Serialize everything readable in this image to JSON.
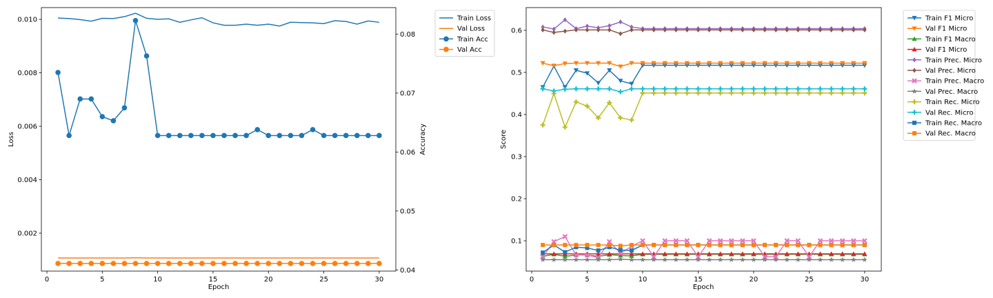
{
  "chart_data": [
    {
      "type": "line",
      "xlabel": "Epoch",
      "ylabel": "Loss",
      "y2label": "Accuracy",
      "xlim": [
        -0.5,
        31.5
      ],
      "ylim": [
        0.00058,
        0.01044
      ],
      "y2lim": [
        0.0398,
        0.0845
      ],
      "xticks": [
        0,
        5,
        10,
        15,
        20,
        25,
        30
      ],
      "yticks": [
        0.002,
        0.004,
        0.006,
        0.008,
        0.01
      ],
      "yticklabels": [
        "0.002",
        "0.004",
        "0.006",
        "0.008",
        "0.010"
      ],
      "y2ticks": [
        0.04,
        0.05,
        0.06,
        0.07,
        0.08
      ],
      "y2ticklabels": [
        "0.04",
        "0.05",
        "0.06",
        "0.07",
        "0.08"
      ],
      "x": [
        1,
        2,
        3,
        4,
        5,
        6,
        7,
        8,
        9,
        10,
        11,
        12,
        13,
        14,
        15,
        16,
        17,
        18,
        19,
        20,
        21,
        22,
        23,
        24,
        25,
        26,
        27,
        28,
        29,
        30
      ],
      "legend_position": "outside-right-top",
      "series": [
        {
          "name": "Train Loss",
          "axis": "left",
          "color": "#1f77b4",
          "marker": "none",
          "values": [
            0.01005,
            0.01003,
            0.00999,
            0.00993,
            0.01004,
            0.01003,
            0.0101,
            0.01023,
            0.01004,
            0.01,
            0.01002,
            0.00989,
            0.00998,
            0.01006,
            0.00987,
            0.00978,
            0.00978,
            0.00982,
            0.00978,
            0.00982,
            0.00975,
            0.00989,
            0.00988,
            0.00987,
            0.00984,
            0.00995,
            0.00992,
            0.00982,
            0.00994,
            0.00989
          ]
        },
        {
          "name": "Val Loss",
          "axis": "left",
          "color": "#ff7f0e",
          "marker": "none",
          "values": [
            0.00107,
            0.00107,
            0.00107,
            0.00107,
            0.00107,
            0.00107,
            0.00107,
            0.00108,
            0.00107,
            0.00107,
            0.00107,
            0.00107,
            0.00107,
            0.00107,
            0.00107,
            0.00107,
            0.00107,
            0.00107,
            0.00107,
            0.00107,
            0.00107,
            0.00107,
            0.00107,
            0.00107,
            0.00107,
            0.00107,
            0.00107,
            0.00107,
            0.00107,
            0.00107
          ]
        },
        {
          "name": "Train Acc",
          "axis": "right",
          "color": "#1f77b4",
          "marker": "circle",
          "values": [
            0.0735,
            0.0628,
            0.069,
            0.069,
            0.066,
            0.0653,
            0.0675,
            0.0823,
            0.0763,
            0.0628,
            0.0628,
            0.0628,
            0.0628,
            0.0628,
            0.0628,
            0.0628,
            0.0628,
            0.0628,
            0.0638,
            0.0628,
            0.0628,
            0.0628,
            0.0628,
            0.0638,
            0.0628,
            0.0628,
            0.0628,
            0.0628,
            0.0628,
            0.0628
          ]
        },
        {
          "name": "Val Acc",
          "axis": "right",
          "color": "#ff7f0e",
          "marker": "circle",
          "values": [
            0.0411,
            0.0411,
            0.0411,
            0.0411,
            0.0411,
            0.0411,
            0.0411,
            0.0411,
            0.0411,
            0.0411,
            0.0411,
            0.0411,
            0.0411,
            0.0411,
            0.0411,
            0.0411,
            0.0411,
            0.0411,
            0.0411,
            0.0411,
            0.0411,
            0.0411,
            0.0411,
            0.0411,
            0.0411,
            0.0411,
            0.0411,
            0.0411,
            0.0411,
            0.0411
          ]
        }
      ]
    },
    {
      "type": "line",
      "xlabel": "Epoch",
      "ylabel": "Score",
      "xlim": [
        -0.5,
        31.5
      ],
      "ylim": [
        0.028,
        0.654
      ],
      "xticks": [
        0,
        5,
        10,
        15,
        20,
        25,
        30
      ],
      "yticks": [
        0.1,
        0.2,
        0.3,
        0.4,
        0.5,
        0.6
      ],
      "yticklabels": [
        "0.1",
        "0.2",
        "0.3",
        "0.4",
        "0.5",
        "0.6"
      ],
      "x": [
        1,
        2,
        3,
        4,
        5,
        6,
        7,
        8,
        9,
        10,
        11,
        12,
        13,
        14,
        15,
        16,
        17,
        18,
        19,
        20,
        21,
        22,
        23,
        24,
        25,
        26,
        27,
        28,
        29,
        30
      ],
      "legend_position": "outside-right-top",
      "series": [
        {
          "name": "Train F1 Micro",
          "color": "#1f77b4",
          "marker": "triangle-down",
          "values": [
            0.465,
            0.515,
            0.465,
            0.505,
            0.498,
            0.475,
            0.505,
            0.48,
            0.473,
            0.517,
            0.517,
            0.517,
            0.517,
            0.517,
            0.517,
            0.517,
            0.517,
            0.517,
            0.517,
            0.517,
            0.517,
            0.517,
            0.517,
            0.517,
            0.517,
            0.517,
            0.517,
            0.517,
            0.517,
            0.517
          ]
        },
        {
          "name": "Val F1 Micro",
          "color": "#ff7f0e",
          "marker": "triangle-down",
          "values": [
            0.522,
            0.516,
            0.521,
            0.522,
            0.522,
            0.522,
            0.522,
            0.514,
            0.522,
            0.522,
            0.522,
            0.522,
            0.522,
            0.522,
            0.522,
            0.522,
            0.522,
            0.522,
            0.522,
            0.522,
            0.522,
            0.522,
            0.522,
            0.522,
            0.522,
            0.522,
            0.522,
            0.522,
            0.522,
            0.522
          ]
        },
        {
          "name": "Train F1 Macro",
          "color": "#2ca02c",
          "marker": "triangle-up",
          "values": [
            0.063,
            0.068,
            0.063,
            0.066,
            0.066,
            0.063,
            0.067,
            0.065,
            0.064,
            0.068,
            0.068,
            0.068,
            0.068,
            0.068,
            0.068,
            0.068,
            0.068,
            0.068,
            0.068,
            0.068,
            0.068,
            0.068,
            0.068,
            0.068,
            0.068,
            0.068,
            0.068,
            0.068,
            0.068,
            0.068
          ]
        },
        {
          "name": "Val F1 Micro",
          "color": "#d62728",
          "marker": "triangle-up",
          "values": [
            0.069,
            0.069,
            0.069,
            0.069,
            0.069,
            0.069,
            0.069,
            0.069,
            0.069,
            0.069,
            0.069,
            0.069,
            0.069,
            0.069,
            0.069,
            0.069,
            0.069,
            0.069,
            0.069,
            0.069,
            0.069,
            0.069,
            0.069,
            0.069,
            0.069,
            0.069,
            0.069,
            0.069,
            0.069,
            0.069
          ]
        },
        {
          "name": "Train Prec. Micro",
          "color": "#9467bd",
          "marker": "diamond",
          "values": [
            0.608,
            0.603,
            0.625,
            0.604,
            0.61,
            0.606,
            0.611,
            0.62,
            0.608,
            0.604,
            0.604,
            0.604,
            0.604,
            0.604,
            0.604,
            0.604,
            0.604,
            0.604,
            0.604,
            0.604,
            0.604,
            0.604,
            0.604,
            0.604,
            0.604,
            0.604,
            0.604,
            0.604,
            0.604,
            0.604
          ]
        },
        {
          "name": "Val Prec. Micro",
          "color": "#8c564b",
          "marker": "diamond",
          "values": [
            0.601,
            0.595,
            0.598,
            0.601,
            0.601,
            0.601,
            0.601,
            0.592,
            0.601,
            0.601,
            0.601,
            0.601,
            0.601,
            0.601,
            0.601,
            0.601,
            0.601,
            0.601,
            0.601,
            0.601,
            0.601,
            0.601,
            0.601,
            0.601,
            0.601,
            0.601,
            0.601,
            0.601,
            0.601,
            0.601
          ]
        },
        {
          "name": "Train Prec. Macro",
          "color": "#e377c2",
          "marker": "x",
          "values": [
            0.062,
            0.098,
            0.11,
            0.066,
            0.066,
            0.06,
            0.098,
            0.07,
            0.087,
            0.1,
            0.062,
            0.1,
            0.1,
            0.1,
            0.062,
            0.1,
            0.1,
            0.1,
            0.1,
            0.1,
            0.062,
            0.062,
            0.1,
            0.1,
            0.062,
            0.1,
            0.1,
            0.1,
            0.1,
            0.1
          ]
        },
        {
          "name": "Val Prec. Macro",
          "color": "#7f7f7f",
          "marker": "star",
          "values": [
            0.055,
            0.055,
            0.055,
            0.055,
            0.055,
            0.055,
            0.055,
            0.056,
            0.055,
            0.055,
            0.055,
            0.055,
            0.055,
            0.055,
            0.055,
            0.055,
            0.055,
            0.055,
            0.055,
            0.055,
            0.055,
            0.055,
            0.055,
            0.055,
            0.055,
            0.055,
            0.055,
            0.055,
            0.055,
            0.055
          ]
        },
        {
          "name": "Train Rec. Micro",
          "color": "#bcbd22",
          "marker": "plus",
          "values": [
            0.375,
            0.45,
            0.37,
            0.43,
            0.42,
            0.392,
            0.428,
            0.392,
            0.387,
            0.451,
            0.451,
            0.451,
            0.451,
            0.451,
            0.451,
            0.451,
            0.451,
            0.451,
            0.451,
            0.451,
            0.451,
            0.451,
            0.451,
            0.451,
            0.451,
            0.451,
            0.451,
            0.451,
            0.451,
            0.451
          ]
        },
        {
          "name": "Val Rec. Micro",
          "color": "#17becf",
          "marker": "plus",
          "values": [
            0.461,
            0.456,
            0.46,
            0.461,
            0.461,
            0.461,
            0.461,
            0.454,
            0.461,
            0.461,
            0.461,
            0.461,
            0.461,
            0.461,
            0.461,
            0.461,
            0.461,
            0.461,
            0.461,
            0.461,
            0.461,
            0.461,
            0.461,
            0.461,
            0.461,
            0.461,
            0.461,
            0.461,
            0.461,
            0.461
          ]
        },
        {
          "name": "Train Rec. Macro",
          "color": "#1f77b4",
          "marker": "square",
          "values": [
            0.072,
            0.09,
            0.073,
            0.085,
            0.083,
            0.077,
            0.085,
            0.078,
            0.077,
            0.09,
            0.09,
            0.09,
            0.09,
            0.09,
            0.09,
            0.09,
            0.09,
            0.09,
            0.09,
            0.09,
            0.09,
            0.09,
            0.09,
            0.09,
            0.09,
            0.09,
            0.09,
            0.09,
            0.09,
            0.09
          ]
        },
        {
          "name": "Val Rec. Macro",
          "color": "#ff7f0e",
          "marker": "square",
          "values": [
            0.09,
            0.09,
            0.09,
            0.09,
            0.09,
            0.09,
            0.09,
            0.088,
            0.09,
            0.09,
            0.09,
            0.09,
            0.09,
            0.09,
            0.09,
            0.09,
            0.09,
            0.09,
            0.09,
            0.09,
            0.09,
            0.09,
            0.09,
            0.09,
            0.09,
            0.09,
            0.09,
            0.09,
            0.09,
            0.09
          ]
        }
      ]
    }
  ]
}
